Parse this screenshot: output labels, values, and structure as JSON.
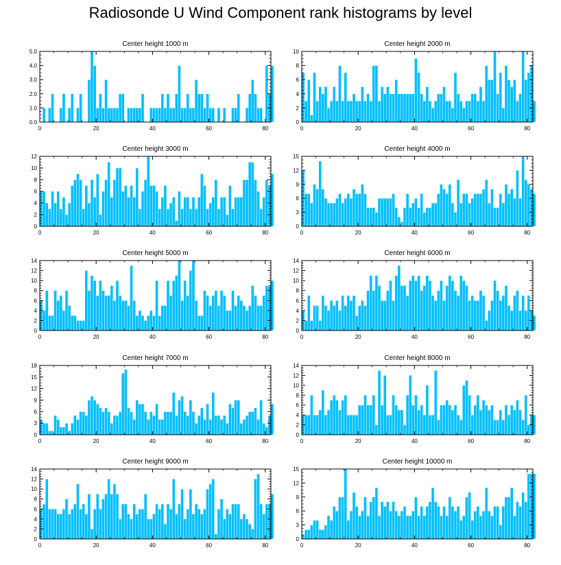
{
  "figure_title": "Radiosonde U Wind Component rank histograms by level",
  "bar_color": "#00bfff",
  "chart_data": [
    {
      "type": "bar",
      "title": "Center height 1000 m",
      "xlim": [
        0,
        82
      ],
      "xticks": [
        0,
        20,
        40,
        60,
        80
      ],
      "ylim": [
        0,
        5
      ],
      "yticks": [
        "0.0",
        "1.0",
        "2.0",
        "3.0",
        "4.0",
        "5.0"
      ],
      "ytick_values": [
        0,
        1,
        2,
        3,
        4,
        5
      ],
      "values": [
        0,
        1,
        0,
        1,
        2,
        0,
        0,
        1,
        2,
        0,
        1,
        2,
        0,
        1,
        2,
        0,
        0,
        3,
        5,
        4,
        1,
        2,
        1,
        3,
        1,
        1,
        1,
        1,
        2,
        2,
        0,
        1,
        1,
        1,
        1,
        1,
        2,
        0,
        0,
        1,
        1,
        1,
        1,
        2,
        1,
        2,
        1,
        1,
        2,
        4,
        1,
        1,
        2,
        1,
        1,
        3,
        2,
        2,
        1,
        2,
        1,
        1,
        0,
        1,
        0,
        1,
        0,
        0,
        1,
        1,
        2,
        0,
        0,
        1,
        2,
        3,
        2,
        1,
        1,
        0,
        4,
        2,
        4
      ]
    },
    {
      "type": "bar",
      "title": "Center height 2000 m",
      "xlim": [
        0,
        82
      ],
      "xticks": [
        0,
        20,
        40,
        60,
        80
      ],
      "ylim": [
        0,
        10
      ],
      "yticks": [
        "0",
        "2",
        "4",
        "6",
        "8",
        "10"
      ],
      "ytick_values": [
        0,
        2,
        4,
        6,
        8,
        10
      ],
      "values": [
        7,
        3,
        6,
        1,
        7,
        3,
        5,
        4,
        5,
        2,
        3,
        5,
        3,
        8,
        3,
        7,
        3,
        3,
        4,
        3,
        3,
        5,
        3,
        4,
        3,
        8,
        8,
        3,
        5,
        4,
        5,
        4,
        4,
        6,
        4,
        4,
        4,
        4,
        4,
        4,
        9,
        7,
        4,
        3,
        5,
        3,
        2,
        3,
        4,
        4,
        5,
        3,
        3,
        2,
        7,
        4,
        3,
        2,
        3,
        3,
        4,
        4,
        3,
        5,
        3,
        8,
        6,
        6,
        10,
        4,
        7,
        2,
        8,
        6,
        5,
        6,
        3,
        4,
        10,
        6,
        7,
        8,
        3
      ]
    },
    {
      "type": "bar",
      "title": "Center height 3000 m",
      "xlim": [
        0,
        82
      ],
      "xticks": [
        0,
        20,
        40,
        60,
        80
      ],
      "ylim": [
        0,
        12
      ],
      "yticks": [
        "0",
        "2",
        "4",
        "6",
        "8",
        "10",
        "12"
      ],
      "ytick_values": [
        0,
        2,
        4,
        6,
        8,
        10,
        12
      ],
      "values": [
        6,
        6,
        4,
        3,
        6,
        4,
        6,
        3,
        5,
        2,
        4,
        7,
        8,
        9,
        8,
        3,
        7,
        4,
        8,
        5,
        9,
        2,
        6,
        8,
        11,
        5,
        8,
        10,
        10,
        6,
        7,
        5,
        7,
        5,
        10,
        3,
        6,
        8,
        12,
        7,
        7,
        6,
        3,
        5,
        7,
        3,
        4,
        5,
        1,
        6,
        3,
        5,
        5,
        3,
        5,
        3,
        5,
        9,
        7,
        3,
        4,
        5,
        8,
        3,
        5,
        5,
        2,
        7,
        3,
        5,
        5,
        5,
        8,
        8,
        11,
        11,
        8,
        6,
        3,
        5,
        8,
        7,
        9
      ]
    },
    {
      "type": "bar",
      "title": "Center height 4000 m",
      "xlim": [
        0,
        82
      ],
      "xticks": [
        0,
        20,
        40,
        60,
        80
      ],
      "ylim": [
        0,
        15
      ],
      "yticks": [
        "0",
        "3",
        "6",
        "9",
        "12",
        "15"
      ],
      "ytick_values": [
        0,
        3,
        6,
        9,
        12,
        15
      ],
      "values": [
        12,
        7,
        7,
        5,
        9,
        8,
        14,
        8,
        6,
        5,
        5,
        5,
        6,
        7,
        5,
        6,
        7,
        6,
        8,
        7,
        7,
        9,
        7,
        4,
        4,
        4,
        3,
        6,
        6,
        6,
        6,
        6,
        7,
        4,
        2,
        1,
        4,
        7,
        4,
        5,
        6,
        4,
        7,
        3,
        4,
        4,
        5,
        5,
        7,
        9,
        8,
        7,
        9,
        5,
        3,
        10,
        5,
        7,
        7,
        5,
        6,
        7,
        7,
        7,
        8,
        10,
        5,
        8,
        4,
        4,
        7,
        5,
        9,
        7,
        8,
        6,
        12,
        6,
        15,
        10,
        9,
        8,
        7
      ]
    },
    {
      "type": "bar",
      "title": "Center height 5000 m",
      "xlim": [
        0,
        82
      ],
      "xticks": [
        0,
        20,
        40,
        60,
        80
      ],
      "ylim": [
        0,
        14
      ],
      "yticks": [
        "0",
        "2",
        "4",
        "6",
        "8",
        "10",
        "12",
        "14"
      ],
      "ytick_values": [
        0,
        2,
        4,
        6,
        8,
        10,
        12,
        14
      ],
      "values": [
        6,
        4,
        8,
        3,
        3,
        8,
        6,
        7,
        4,
        8,
        5,
        3,
        3,
        2,
        2,
        2,
        12,
        8,
        11,
        10,
        7,
        10,
        8,
        7,
        7,
        9,
        6,
        10,
        7,
        6,
        6,
        5,
        13,
        6,
        3,
        4,
        3,
        2,
        3,
        4,
        3,
        10,
        3,
        5,
        5,
        10,
        7,
        10,
        11,
        14,
        6,
        10,
        7,
        12,
        14,
        6,
        3,
        3,
        8,
        7,
        5,
        7,
        8,
        5,
        8,
        7,
        4,
        4,
        8,
        5,
        7,
        6,
        5,
        4,
        5,
        9,
        7,
        5,
        5,
        7,
        9,
        9,
        10
      ]
    },
    {
      "type": "bar",
      "title": "Center height 6000 m",
      "xlim": [
        0,
        82
      ],
      "xticks": [
        0,
        20,
        40,
        60,
        80
      ],
      "ylim": [
        0,
        14
      ],
      "yticks": [
        "0",
        "2",
        "4",
        "6",
        "8",
        "10",
        "12",
        "14"
      ],
      "ytick_values": [
        0,
        2,
        4,
        6,
        8,
        10,
        12,
        14
      ],
      "values": [
        4,
        2,
        7,
        2,
        5,
        5,
        2,
        7,
        5,
        4,
        6,
        5,
        6,
        4,
        7,
        5,
        7,
        6,
        7,
        3,
        5,
        6,
        5,
        8,
        11,
        8,
        11,
        9,
        6,
        6,
        8,
        10,
        6,
        11,
        13,
        9,
        9,
        7,
        10,
        11,
        10,
        11,
        8,
        9,
        11,
        10,
        7,
        6,
        8,
        10,
        6,
        9,
        11,
        10,
        8,
        7,
        11,
        10,
        9,
        6,
        7,
        6,
        6,
        8,
        7,
        2,
        4,
        6,
        10,
        8,
        6,
        7,
        9,
        5,
        4,
        7,
        8,
        4,
        7,
        4,
        7,
        4,
        3
      ]
    },
    {
      "type": "bar",
      "title": "Center height 7000 m",
      "xlim": [
        0,
        82
      ],
      "xticks": [
        0,
        20,
        40,
        60,
        80
      ],
      "ylim": [
        0,
        18
      ],
      "yticks": [
        "0",
        "3",
        "6",
        "9",
        "12",
        "15",
        "18"
      ],
      "ytick_values": [
        0,
        3,
        6,
        9,
        12,
        15,
        18
      ],
      "values": [
        4,
        3,
        3,
        1,
        1,
        5,
        4,
        2,
        2,
        3,
        1,
        3,
        5,
        4,
        6,
        6,
        5,
        9,
        10,
        9,
        8,
        7,
        6,
        7,
        6,
        3,
        5,
        5,
        6,
        16,
        17,
        7,
        6,
        4,
        9,
        8,
        8,
        6,
        4,
        6,
        5,
        8,
        4,
        4,
        6,
        6,
        6,
        11,
        5,
        9,
        10,
        6,
        5,
        9,
        6,
        3,
        5,
        7,
        4,
        8,
        4,
        11,
        5,
        5,
        4,
        5,
        3,
        8,
        7,
        9,
        9,
        3,
        4,
        5,
        6,
        6,
        7,
        4,
        9,
        3,
        2,
        5,
        8
      ]
    },
    {
      "type": "bar",
      "title": "Center height 8000 m",
      "xlim": [
        0,
        82
      ],
      "xticks": [
        0,
        20,
        40,
        60,
        80
      ],
      "ylim": [
        0,
        14
      ],
      "yticks": [
        "0",
        "2",
        "4",
        "6",
        "8",
        "10",
        "12",
        "14"
      ],
      "ytick_values": [
        0,
        2,
        4,
        6,
        8,
        10,
        12,
        14
      ],
      "values": [
        4,
        4,
        4,
        8,
        4,
        4,
        5,
        9,
        4,
        5,
        7,
        8,
        7,
        5,
        7,
        8,
        4,
        4,
        4,
        4,
        6,
        6,
        8,
        6,
        6,
        8,
        2,
        13,
        6,
        12,
        4,
        4,
        8,
        6,
        5,
        5,
        2,
        8,
        12,
        6,
        8,
        5,
        6,
        4,
        10,
        4,
        4,
        13,
        3,
        6,
        6,
        7,
        6,
        5,
        6,
        4,
        3,
        10,
        11,
        8,
        4,
        6,
        8,
        5,
        7,
        6,
        5,
        6,
        3,
        3,
        5,
        3,
        6,
        4,
        6,
        5,
        7,
        5,
        3,
        8,
        2,
        4,
        4
      ]
    },
    {
      "type": "bar",
      "title": "Center height 9000 m",
      "xlim": [
        0,
        82
      ],
      "xticks": [
        0,
        20,
        40,
        60,
        80
      ],
      "ylim": [
        0,
        14
      ],
      "yticks": [
        "0",
        "2",
        "4",
        "6",
        "8",
        "10",
        "12",
        "14"
      ],
      "ytick_values": [
        0,
        2,
        4,
        6,
        8,
        10,
        12,
        14
      ],
      "values": [
        6,
        7,
        12,
        6,
        6,
        6,
        5,
        5,
        6,
        8,
        5,
        6,
        7,
        11,
        6,
        7,
        5,
        9,
        2,
        6,
        9,
        6,
        8,
        9,
        12,
        9,
        11,
        9,
        4,
        7,
        7,
        5,
        4,
        7,
        5,
        6,
        6,
        9,
        4,
        4,
        5,
        7,
        6,
        7,
        3,
        7,
        6,
        12,
        5,
        7,
        10,
        4,
        6,
        10,
        5,
        7,
        6,
        5,
        6,
        10,
        11,
        12,
        1,
        6,
        8,
        4,
        6,
        5,
        7,
        7,
        7,
        4,
        5,
        4,
        3,
        2,
        12,
        13,
        7,
        5,
        7,
        7,
        9
      ]
    },
    {
      "type": "bar",
      "title": "Center height 10000 m",
      "xlim": [
        0,
        82
      ],
      "xticks": [
        0,
        20,
        40,
        60,
        80
      ],
      "ylim": [
        0,
        15
      ],
      "yticks": [
        "0",
        "3",
        "6",
        "9",
        "12",
        "15"
      ],
      "ytick_values": [
        0,
        3,
        6,
        9,
        12,
        15
      ],
      "values": [
        1,
        2,
        2,
        3,
        4,
        4,
        2,
        2,
        3,
        5,
        4,
        7,
        6,
        9,
        9,
        15,
        4,
        6,
        10,
        7,
        5,
        6,
        9,
        5,
        8,
        9,
        11,
        5,
        8,
        7,
        8,
        6,
        8,
        6,
        5,
        6,
        7,
        5,
        5,
        6,
        9,
        5,
        7,
        5,
        7,
        8,
        11,
        8,
        7,
        5,
        7,
        5,
        9,
        7,
        6,
        7,
        4,
        5,
        9,
        10,
        4,
        6,
        7,
        5,
        6,
        11,
        6,
        5,
        7,
        7,
        3,
        7,
        9,
        9,
        11,
        5,
        8,
        7,
        10,
        8,
        14,
        14,
        14
      ]
    }
  ]
}
